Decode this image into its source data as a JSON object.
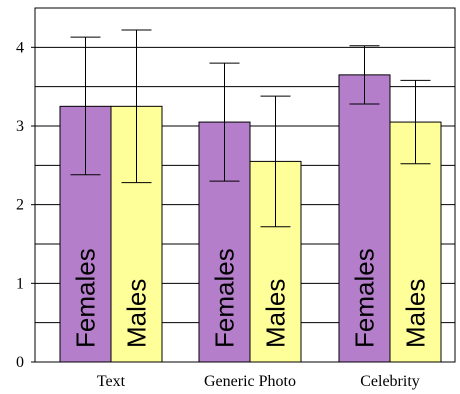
{
  "chart_data": {
    "type": "bar",
    "categories": [
      "Text",
      "Generic Photo",
      "Celebrity"
    ],
    "series": [
      {
        "name": "Females",
        "color": "#b57ecb",
        "values": [
          3.25,
          3.05,
          3.65
        ],
        "error_low": [
          2.38,
          2.3,
          3.28
        ],
        "error_high": [
          4.13,
          3.8,
          4.02
        ]
      },
      {
        "name": "Males",
        "color": "#ffff99",
        "values": [
          3.25,
          2.55,
          3.05
        ],
        "error_low": [
          2.28,
          1.72,
          2.52
        ],
        "error_high": [
          4.22,
          3.38,
          3.58
        ]
      }
    ],
    "ylim": [
      0,
      4.5
    ],
    "yticks": [
      "0",
      "1",
      "2",
      "3",
      "4"
    ],
    "grid_lines": [
      0.5,
      1,
      1.5,
      2,
      2.5,
      3,
      3.5,
      4
    ],
    "title": "",
    "xlabel": "",
    "ylabel": "",
    "legend": "none",
    "grid": true
  }
}
